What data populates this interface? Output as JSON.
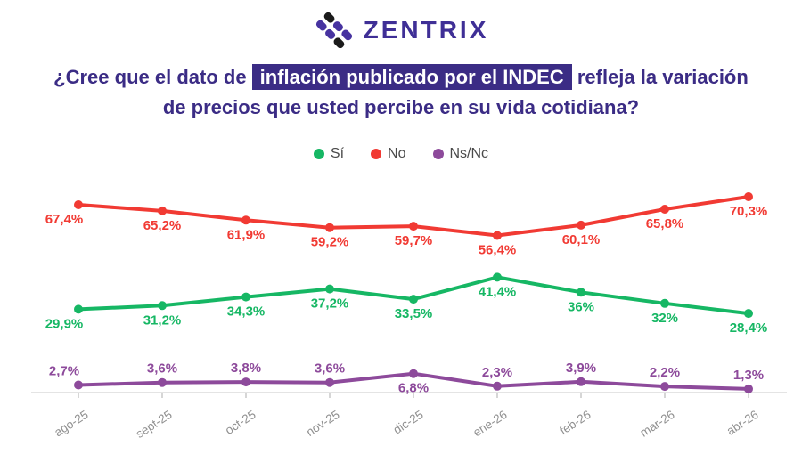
{
  "header": {
    "logo_text": "ZENTRIX",
    "title_line1_pre": "¿Cree que el dato de ",
    "title_highlight": "inflación publicado por el INDEC",
    "title_line1_post": " refleja la variación",
    "title_line2": "de precios que usted percibe en su vida cotidiana?"
  },
  "brand_colors": {
    "indigo": "#3b2c85",
    "logo_purple": "#4733a0",
    "logo_black": "#1b1b1b"
  },
  "chart_data": {
    "type": "line",
    "title": "¿Cree que el dato de inflación publicado por el INDEC refleja la variación de precios que usted percibe en su vida cotidiana?",
    "x": [
      "ago-25",
      "sept-25",
      "oct-25",
      "nov-25",
      "dic-25",
      "ene-26",
      "feb-26",
      "mar-26",
      "abr-26"
    ],
    "series": [
      {
        "name": "No",
        "color": "#f13a33",
        "values": [
          67.4,
          65.2,
          61.9,
          59.2,
          59.7,
          56.4,
          60.1,
          65.8,
          70.3
        ],
        "labels": [
          "67,4%",
          "65,2%",
          "61,9%",
          "59,2%",
          "59,7%",
          "56,4%",
          "60,1%",
          "65,8%",
          "70,3%"
        ],
        "label_position": "below",
        "label_position_overrides": {}
      },
      {
        "name": "Sí",
        "color": "#16b764",
        "values": [
          29.9,
          31.2,
          34.3,
          37.2,
          33.5,
          41.4,
          36,
          32,
          28.4
        ],
        "labels": [
          "29,9%",
          "31,2%",
          "34,3%",
          "37,2%",
          "33,5%",
          "41,4%",
          "36%",
          "32%",
          "28,4%"
        ],
        "label_position": "below",
        "label_position_overrides": {}
      },
      {
        "name": "Ns/Nc",
        "color": "#8d4a9b",
        "values": [
          2.7,
          3.6,
          3.8,
          3.6,
          6.8,
          2.3,
          3.9,
          2.2,
          1.3
        ],
        "labels": [
          "2,7%",
          "3,6%",
          "3,8%",
          "3,6%",
          "6,8%",
          "2,3%",
          "3,9%",
          "2,2%",
          "1,3%"
        ],
        "label_position": "above",
        "label_position_overrides": {
          "4": "below"
        }
      }
    ],
    "legend_entries": [
      "Sí",
      "No",
      "Ns/Nc"
    ],
    "legend_order": [
      1,
      0,
      2
    ],
    "legend_position": "top-center",
    "grid": false,
    "ylim": [
      0,
      80
    ],
    "xlabel": "",
    "ylabel": ""
  }
}
